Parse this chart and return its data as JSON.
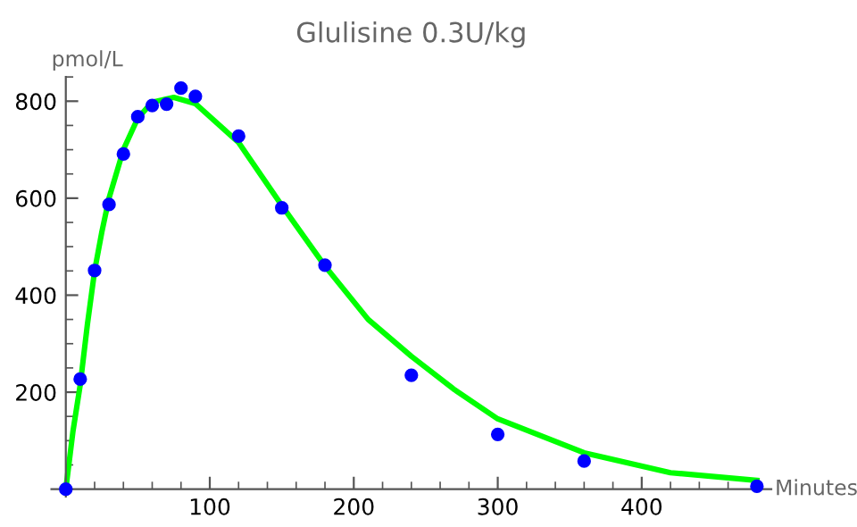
{
  "chart_data": {
    "type": "scatter",
    "title": "Glulisine 0.3U/kg",
    "xlabel": "Minutes",
    "ylabel": "pmol/L",
    "xlim": [
      -10,
      490
    ],
    "ylim": [
      -15,
      850
    ],
    "xticks": [
      100,
      200,
      300,
      400
    ],
    "yticks": [
      200,
      400,
      600,
      800
    ],
    "grid": false,
    "legend": false,
    "marker": "circle",
    "series": [
      {
        "color": "#0000ff",
        "x": [
          0,
          10,
          20,
          30,
          40,
          50,
          60,
          70,
          80,
          90,
          120,
          150,
          180,
          240,
          300,
          360,
          480
        ],
        "values": [
          0,
          227,
          451,
          587,
          691,
          768,
          791,
          794,
          827,
          810,
          728,
          580,
          462,
          235,
          113,
          58,
          6
        ]
      },
      {
        "type": "line",
        "color": "#00ff00",
        "marker": "none",
        "x": [
          0,
          5,
          10,
          15,
          20,
          25,
          30,
          40,
          50,
          60,
          75,
          90,
          120,
          150,
          180,
          210,
          240,
          270,
          300,
          360,
          420,
          480
        ],
        "values": [
          0,
          120,
          215,
          340,
          450,
          530,
          600,
          700,
          765,
          798,
          808,
          795,
          715,
          585,
          460,
          350,
          274,
          205,
          145,
          75,
          34,
          18
        ]
      }
    ]
  }
}
